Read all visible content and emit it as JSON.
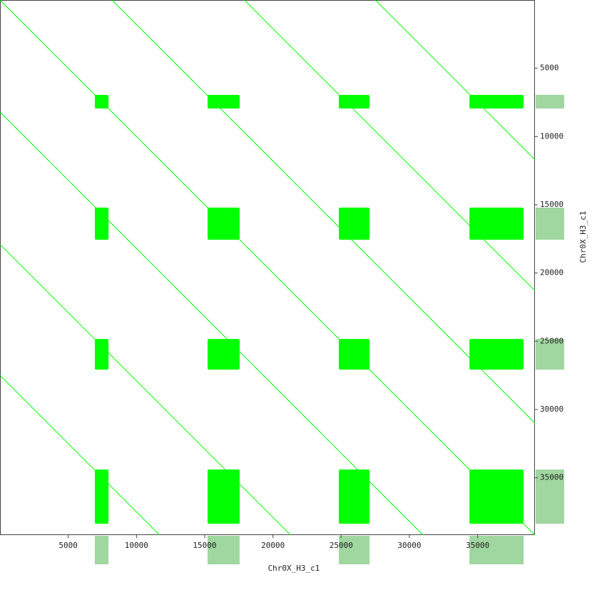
{
  "chart_data": {
    "type": "dotplot",
    "x_label": "Chr0X_H3_c1",
    "y_label": "Chr0X_H3_c1",
    "xlim": [
      0,
      39200
    ],
    "ylim": [
      0,
      39200
    ],
    "xticks": [
      5000,
      10000,
      15000,
      20000,
      25000,
      30000,
      35000
    ],
    "yticks": [
      5000,
      10000,
      15000,
      20000,
      25000,
      30000,
      35000
    ],
    "color": "#00ff00",
    "margin_color": "#a0d6a0",
    "diagonals": [
      {
        "x": [
          0,
          39200
        ],
        "y": [
          0,
          39200
        ]
      },
      {
        "x": [
          8200,
          39200
        ],
        "y": [
          0,
          31000
        ]
      },
      {
        "x": [
          17900,
          39200
        ],
        "y": [
          0,
          21300
        ]
      },
      {
        "x": [
          27500,
          39200
        ],
        "y": [
          0,
          11700
        ]
      },
      {
        "x": [
          0,
          31000
        ],
        "y": [
          8200,
          39200
        ]
      },
      {
        "x": [
          0,
          21300
        ],
        "y": [
          17900,
          39200
        ]
      },
      {
        "x": [
          0,
          11700
        ],
        "y": [
          27500,
          39200
        ]
      }
    ],
    "blocks": [
      {
        "start": 6950,
        "end": 7950
      },
      {
        "start": 15210,
        "end": 17560
      },
      {
        "start": 24830,
        "end": 27080
      },
      {
        "start": 34400,
        "end": 38370
      }
    ]
  }
}
